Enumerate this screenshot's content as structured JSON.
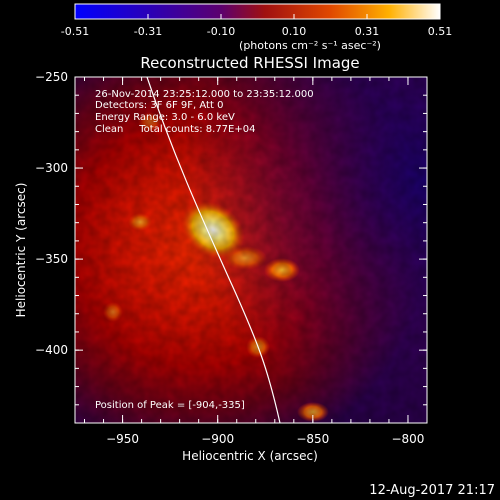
{
  "header": {
    "colorbar": {
      "tick_labels": [
        "-0.51",
        "-0.31",
        "-0.10",
        "0.10",
        "0.31",
        "0.51"
      ],
      "units_label": "(photons cm⁻² s⁻¹ asec⁻²)"
    }
  },
  "plot": {
    "title": "Reconstructed RHESSI Image",
    "xlabel": "Heliocentric X (arcsec)",
    "ylabel": "Heliocentric Y (arcsec)",
    "x_ticks": [
      "-950",
      "-900",
      "-850",
      "-800"
    ],
    "y_ticks": [
      "-250",
      "-300",
      "-350",
      "-400"
    ],
    "info": {
      "time_range": "26-Nov-2014 23:25:12.000 to 23:35:12.000",
      "detectors": "Detectors: 3F 6F 9F, Att 0",
      "energy_range": "Energy Range: 3.0 - 6.0 keV",
      "clean_total": "Clean     Total counts: 8.77E+04"
    },
    "peak_position": "Position of Peak = [-904,-335]",
    "image_data": {
      "x_range": [
        -975,
        -790
      ],
      "y_range": [
        -440,
        -250
      ],
      "peak": [
        -904,
        -335
      ],
      "limb_visible": true
    }
  },
  "footer": {
    "timestamp": "12-Aug-2017 21:17"
  },
  "colors": {
    "background": "#000000",
    "text": "#ffffff",
    "colormap": [
      "#0000ff",
      "#3300aa",
      "#880044",
      "#cc2200",
      "#ff8800",
      "#ffffff"
    ]
  }
}
